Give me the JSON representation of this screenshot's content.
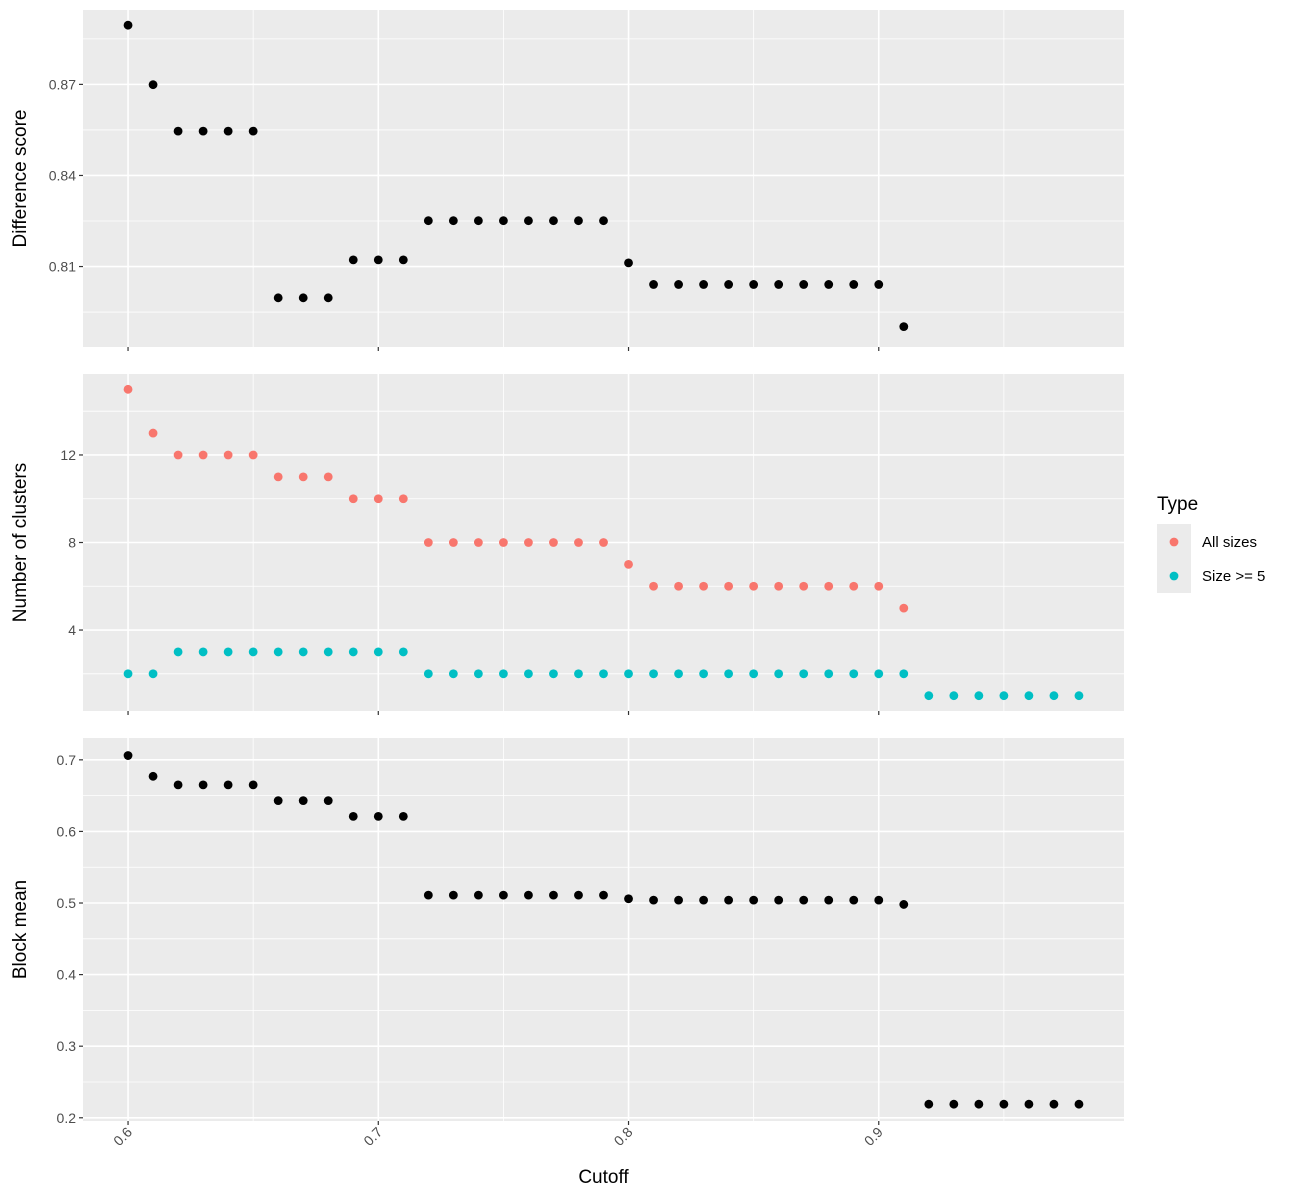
{
  "chart_data": [
    {
      "type": "scatter",
      "ylabel": "Difference score",
      "xlabel": "",
      "xlim": [
        0.582,
        0.998
      ],
      "ylim": [
        0.7835,
        0.8945
      ],
      "y_ticks": [
        0.81,
        0.84,
        0.87
      ],
      "y_tick_labels": [
        "0.81",
        "0.84",
        "0.87"
      ],
      "grid": true,
      "series": [
        {
          "color": "#000000",
          "x": [
            0.6,
            0.61,
            0.62,
            0.63,
            0.64,
            0.65,
            0.66,
            0.67,
            0.68,
            0.69,
            0.7,
            0.71,
            0.72,
            0.73,
            0.74,
            0.75,
            0.76,
            0.77,
            0.78,
            0.79,
            0.8,
            0.81,
            0.82,
            0.83,
            0.84,
            0.85,
            0.86,
            0.87,
            0.88,
            0.89,
            0.9,
            0.91
          ],
          "y": [
            0.8895,
            0.8699,
            0.8546,
            0.8546,
            0.8546,
            0.8546,
            0.7997,
            0.7997,
            0.7997,
            0.8122,
            0.8122,
            0.8122,
            0.8251,
            0.8251,
            0.8251,
            0.8251,
            0.8251,
            0.8251,
            0.8251,
            0.8251,
            0.8112,
            0.8041,
            0.8041,
            0.8041,
            0.8041,
            0.8041,
            0.8041,
            0.8041,
            0.8041,
            0.8041,
            0.8041,
            0.7902
          ]
        }
      ]
    },
    {
      "type": "scatter",
      "ylabel": "Number of clusters",
      "xlabel": "",
      "xlim": [
        0.582,
        0.998
      ],
      "ylim": [
        0.3,
        15.7
      ],
      "y_ticks": [
        4,
        8,
        12
      ],
      "y_tick_labels": [
        "4",
        "8",
        "12"
      ],
      "grid": true,
      "series": [
        {
          "name": "All sizes",
          "color": "#F8766D",
          "x": [
            0.6,
            0.61,
            0.62,
            0.63,
            0.64,
            0.65,
            0.66,
            0.67,
            0.68,
            0.69,
            0.7,
            0.71,
            0.72,
            0.73,
            0.74,
            0.75,
            0.76,
            0.77,
            0.78,
            0.79,
            0.8,
            0.81,
            0.82,
            0.83,
            0.84,
            0.85,
            0.86,
            0.87,
            0.88,
            0.89,
            0.9,
            0.91
          ],
          "y": [
            15,
            13,
            12,
            12,
            12,
            12,
            11,
            11,
            11,
            10,
            10,
            10,
            8,
            8,
            8,
            8,
            8,
            8,
            8,
            8,
            7,
            6,
            6,
            6,
            6,
            6,
            6,
            6,
            6,
            6,
            6,
            5
          ]
        },
        {
          "name": "Size >= 5",
          "color": "#00BFC4",
          "x": [
            0.6,
            0.61,
            0.62,
            0.63,
            0.64,
            0.65,
            0.66,
            0.67,
            0.68,
            0.69,
            0.7,
            0.71,
            0.72,
            0.73,
            0.74,
            0.75,
            0.76,
            0.77,
            0.78,
            0.79,
            0.8,
            0.81,
            0.82,
            0.83,
            0.84,
            0.85,
            0.86,
            0.87,
            0.88,
            0.89,
            0.9,
            0.91,
            0.92,
            0.93,
            0.94,
            0.95,
            0.96,
            0.97,
            0.98
          ],
          "y": [
            2,
            2,
            3,
            3,
            3,
            3,
            3,
            3,
            3,
            3,
            3,
            3,
            2,
            2,
            2,
            2,
            2,
            2,
            2,
            2,
            2,
            2,
            2,
            2,
            2,
            2,
            2,
            2,
            2,
            2,
            2,
            2,
            1,
            1,
            1,
            1,
            1,
            1,
            1
          ]
        }
      ]
    },
    {
      "type": "scatter",
      "ylabel": "Block mean",
      "xlabel": "Cutoff",
      "xlim": [
        0.582,
        0.998
      ],
      "ylim": [
        0.1955,
        0.7305
      ],
      "y_ticks": [
        0.2,
        0.3,
        0.4,
        0.5,
        0.6,
        0.7
      ],
      "y_tick_labels": [
        "0.2",
        "0.3",
        "0.4",
        "0.5",
        "0.6",
        "0.7"
      ],
      "x_ticks": [
        0.6,
        0.7,
        0.8,
        0.9
      ],
      "x_tick_labels": [
        "0.6",
        "0.7",
        "0.8",
        "0.9"
      ],
      "grid": true,
      "series": [
        {
          "color": "#000000",
          "x": [
            0.6,
            0.61,
            0.62,
            0.63,
            0.64,
            0.65,
            0.66,
            0.67,
            0.68,
            0.69,
            0.7,
            0.71,
            0.72,
            0.73,
            0.74,
            0.75,
            0.76,
            0.77,
            0.78,
            0.79,
            0.8,
            0.81,
            0.82,
            0.83,
            0.84,
            0.85,
            0.86,
            0.87,
            0.88,
            0.89,
            0.9,
            0.91,
            0.92,
            0.93,
            0.94,
            0.95,
            0.96,
            0.97,
            0.98
          ],
          "y": [
            0.706,
            0.677,
            0.665,
            0.665,
            0.665,
            0.665,
            0.643,
            0.643,
            0.643,
            0.621,
            0.621,
            0.621,
            0.511,
            0.511,
            0.511,
            0.511,
            0.511,
            0.511,
            0.511,
            0.511,
            0.506,
            0.504,
            0.504,
            0.504,
            0.504,
            0.504,
            0.504,
            0.504,
            0.504,
            0.504,
            0.504,
            0.498,
            0.219,
            0.219,
            0.219,
            0.219,
            0.219,
            0.219,
            0.219
          ]
        }
      ]
    }
  ],
  "legend": {
    "title": "Type",
    "position": "right",
    "items": [
      {
        "label": "All sizes",
        "color": "#F8766D"
      },
      {
        "label": "Size >= 5",
        "color": "#00BFC4"
      }
    ]
  }
}
